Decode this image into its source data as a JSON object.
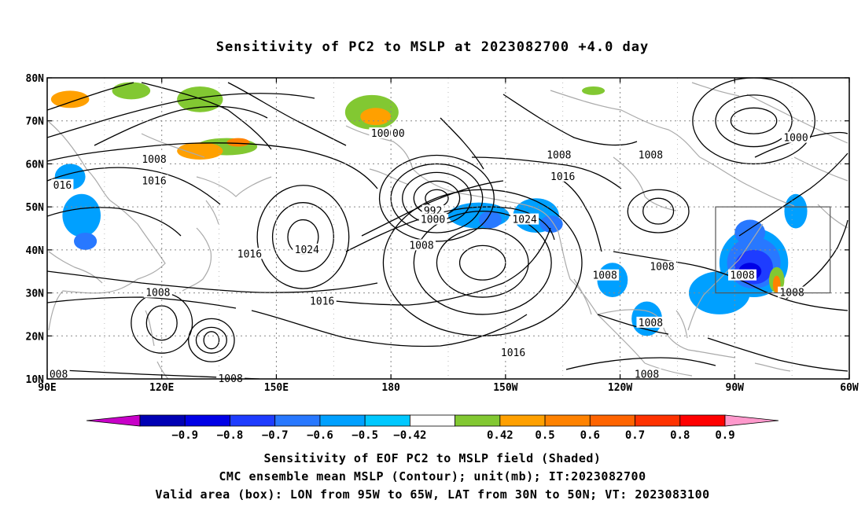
{
  "title": "Sensitivity of PC2 to MSLP at 2023082700 +4.0 day",
  "map": {
    "lon_range": [
      90,
      300
    ],
    "lat_range": [
      10,
      80
    ],
    "lat_ticks": [
      {
        "value": 80,
        "label": "80N"
      },
      {
        "value": 70,
        "label": "70N"
      },
      {
        "value": 60,
        "label": "60N"
      },
      {
        "value": 50,
        "label": "50N"
      },
      {
        "value": 40,
        "label": "40N"
      },
      {
        "value": 30,
        "label": "30N"
      },
      {
        "value": 20,
        "label": "20N"
      },
      {
        "value": 10,
        "label": "10N"
      }
    ],
    "lon_ticks": [
      {
        "value": 90,
        "label": "90E"
      },
      {
        "value": 120,
        "label": "120E"
      },
      {
        "value": 150,
        "label": "150E"
      },
      {
        "value": 180,
        "label": "180"
      },
      {
        "value": 210,
        "label": "150W"
      },
      {
        "value": 240,
        "label": "120W"
      },
      {
        "value": 270,
        "label": "90W"
      },
      {
        "value": 300,
        "label": "60W"
      }
    ],
    "valid_box": {
      "lon": [
        265,
        295
      ],
      "lat": [
        30,
        50
      ]
    },
    "shading": [
      {
        "lon": 96,
        "lat": 57,
        "rx": 4,
        "ry": 3,
        "level": "-0.5"
      },
      {
        "lon": 99,
        "lat": 48,
        "rx": 5,
        "ry": 5,
        "level": "-0.5"
      },
      {
        "lon": 100,
        "lat": 42,
        "rx": 3,
        "ry": 2,
        "level": "-0.6"
      },
      {
        "lon": 203,
        "lat": 48,
        "rx": 8,
        "ry": 3,
        "level": "-0.5"
      },
      {
        "lon": 206,
        "lat": 47,
        "rx": 3,
        "ry": 2,
        "level": "-0.6"
      },
      {
        "lon": 218,
        "lat": 48,
        "rx": 6,
        "ry": 4,
        "level": "-0.5"
      },
      {
        "lon": 222,
        "lat": 46,
        "rx": 3,
        "ry": 2,
        "level": "-0.6"
      },
      {
        "lon": 238,
        "lat": 33,
        "rx": 4,
        "ry": 4,
        "level": "-0.5"
      },
      {
        "lon": 247,
        "lat": 24,
        "rx": 4,
        "ry": 4,
        "level": "-0.5"
      },
      {
        "lon": 266,
        "lat": 30,
        "rx": 8,
        "ry": 5,
        "level": "-0.5"
      },
      {
        "lon": 275,
        "lat": 37,
        "rx": 9,
        "ry": 8,
        "level": "-0.5"
      },
      {
        "lon": 275,
        "lat": 37,
        "rx": 7,
        "ry": 6,
        "level": "-0.6"
      },
      {
        "lon": 275,
        "lat": 36,
        "rx": 5,
        "ry": 4,
        "level": "-0.7"
      },
      {
        "lon": 274,
        "lat": 35,
        "rx": 3,
        "ry": 2,
        "level": "-0.8"
      },
      {
        "lon": 274,
        "lat": 44,
        "rx": 4,
        "ry": 3,
        "level": "-0.6"
      },
      {
        "lon": 286,
        "lat": 49,
        "rx": 3,
        "ry": 4,
        "level": "-0.5"
      },
      {
        "lon": 112,
        "lat": 77,
        "rx": 5,
        "ry": 2,
        "level": "0.42"
      },
      {
        "lon": 96,
        "lat": 75,
        "rx": 5,
        "ry": 2,
        "level": "0.5"
      },
      {
        "lon": 130,
        "lat": 75,
        "rx": 6,
        "ry": 3,
        "level": "0.42"
      },
      {
        "lon": 137,
        "lat": 64,
        "rx": 8,
        "ry": 2,
        "level": "0.42"
      },
      {
        "lon": 130,
        "lat": 63,
        "rx": 6,
        "ry": 2,
        "level": "0.5"
      },
      {
        "lon": 140,
        "lat": 65,
        "rx": 3,
        "ry": 1,
        "level": "0.6"
      },
      {
        "lon": 175,
        "lat": 72,
        "rx": 7,
        "ry": 4,
        "level": "0.42"
      },
      {
        "lon": 176,
        "lat": 71,
        "rx": 4,
        "ry": 2,
        "level": "0.5"
      },
      {
        "lon": 233,
        "lat": 77,
        "rx": 3,
        "ry": 1,
        "level": "0.42"
      },
      {
        "lon": 281,
        "lat": 33,
        "rx": 2,
        "ry": 3,
        "level": "0.42"
      },
      {
        "lon": 281,
        "lat": 32,
        "rx": 1,
        "ry": 2,
        "level": "0.6"
      }
    ],
    "pressure_centers": [
      {
        "lon": 157,
        "lat": 43,
        "rxs": [
          4,
          8,
          12
        ],
        "rys": [
          4,
          8,
          12
        ]
      },
      {
        "lon": 204,
        "lat": 37,
        "rxs": [
          6,
          12,
          18,
          26
        ],
        "rys": [
          4,
          8,
          12,
          17
        ]
      },
      {
        "lon": 192,
        "lat": 52,
        "rxs": [
          3,
          6,
          9,
          12,
          15
        ],
        "rys": [
          2,
          4,
          6,
          8,
          10
        ]
      },
      {
        "lon": 133,
        "lat": 19,
        "rxs": [
          2,
          4,
          6
        ],
        "rys": [
          2,
          3,
          5
        ]
      },
      {
        "lon": 275,
        "lat": 70,
        "rxs": [
          6,
          10,
          16
        ],
        "rys": [
          3,
          6,
          10
        ]
      },
      {
        "lon": 250,
        "lat": 49,
        "rxs": [
          4,
          8
        ],
        "rys": [
          3,
          5
        ]
      },
      {
        "lon": 120,
        "lat": 23,
        "rxs": [
          4,
          8
        ],
        "rys": [
          4,
          7
        ]
      }
    ],
    "contour_labels": [
      {
        "lon": 94,
        "lat": 55,
        "text": "016"
      },
      {
        "lon": 118,
        "lat": 61,
        "text": "1008"
      },
      {
        "lon": 118,
        "lat": 56,
        "text": "1016"
      },
      {
        "lon": 143,
        "lat": 39,
        "text": "1016"
      },
      {
        "lon": 158,
        "lat": 40,
        "text": "1024"
      },
      {
        "lon": 162,
        "lat": 28,
        "text": "1016"
      },
      {
        "lon": 119,
        "lat": 30,
        "text": "1008"
      },
      {
        "lon": 93,
        "lat": 11,
        "text": "008"
      },
      {
        "lon": 138,
        "lat": 10,
        "text": "1008"
      },
      {
        "lon": 178,
        "lat": 67,
        "text": "1000"
      },
      {
        "lon": 182,
        "lat": 67,
        "text": "00"
      },
      {
        "lon": 191,
        "lat": 49,
        "text": "992"
      },
      {
        "lon": 191,
        "lat": 47,
        "text": "1000"
      },
      {
        "lon": 188,
        "lat": 41,
        "text": "1008"
      },
      {
        "lon": 215,
        "lat": 47,
        "text": "1024"
      },
      {
        "lon": 224,
        "lat": 62,
        "text": "1008"
      },
      {
        "lon": 225,
        "lat": 57,
        "text": "1016"
      },
      {
        "lon": 212,
        "lat": 16,
        "text": "1016"
      },
      {
        "lon": 236,
        "lat": 34,
        "text": "1008"
      },
      {
        "lon": 251,
        "lat": 36,
        "text": "1008"
      },
      {
        "lon": 248,
        "lat": 23,
        "text": "1008"
      },
      {
        "lon": 247,
        "lat": 11,
        "text": "1008"
      },
      {
        "lon": 248,
        "lat": 62,
        "text": "1008"
      },
      {
        "lon": 272,
        "lat": 34,
        "text": "1008"
      },
      {
        "lon": 285,
        "lat": 30,
        "text": "1008"
      },
      {
        "lon": 286,
        "lat": 66,
        "text": "1000"
      }
    ]
  },
  "colorbar": {
    "colors": [
      "#c800c8",
      "#0000b4",
      "#0000e6",
      "#1e3cff",
      "#2878ff",
      "#00a0ff",
      "#00c8ff",
      "#ffffff",
      "#82c832",
      "#ffa000",
      "#ff8200",
      "#ff6400",
      "#ff3200",
      "#ff0000",
      "#ff99cc"
    ],
    "labels": [
      "−0.9",
      "−0.8",
      "−0.7",
      "−0.6",
      "−0.5",
      "−0.42",
      "0.42",
      "0.5",
      "0.6",
      "0.7",
      "0.8",
      "0.9"
    ],
    "level_colors": {
      "-0.9": "#0000b4",
      "-0.8": "#0000e6",
      "-0.7": "#1e3cff",
      "-0.6": "#2878ff",
      "-0.5": "#00a0ff",
      "-0.42": "#00c8ff",
      "0.42": "#82c832",
      "0.5": "#ffa000",
      "0.6": "#ff8200",
      "0.7": "#ff6400",
      "0.8": "#ff3200",
      "0.9": "#ff0000"
    }
  },
  "captions": {
    "line1": "Sensitivity of EOF PC2 to MSLP field (Shaded)",
    "line2": "CMC ensemble mean MSLP (Contour); unit(mb); IT:2023082700",
    "line3": "Valid area (box): LON from 95W to 65W, LAT from 30N to 50N; VT: 2023083100"
  }
}
